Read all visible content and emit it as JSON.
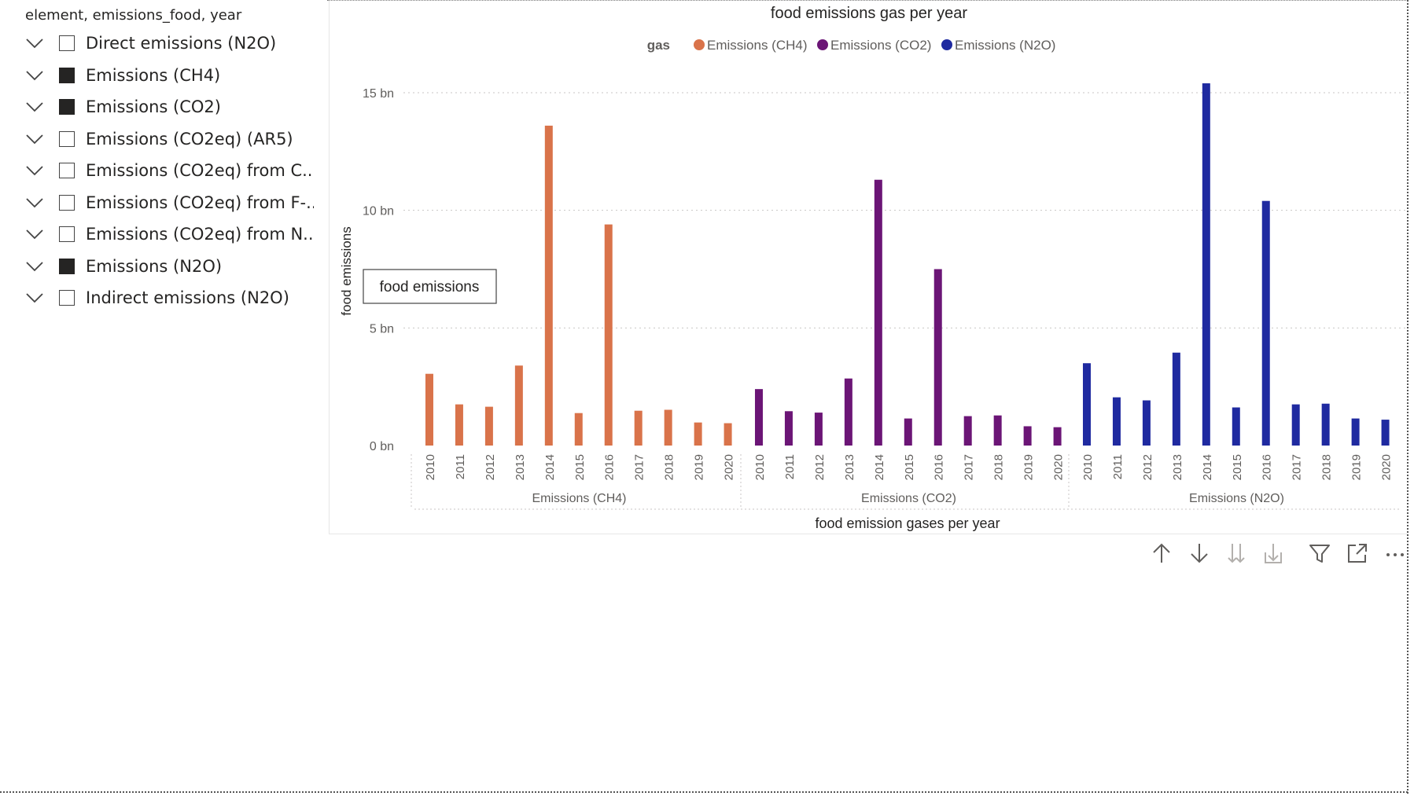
{
  "slicer": {
    "header": "element, emissions_food, year",
    "items": [
      {
        "label": "Direct emissions (N2O)",
        "checked": false
      },
      {
        "label": "Emissions (CH4)",
        "checked": true
      },
      {
        "label": "Emissions (CO2)",
        "checked": true
      },
      {
        "label": "Emissions (CO2eq) (AR5)",
        "checked": false
      },
      {
        "label": "Emissions (CO2eq) from C...",
        "checked": false
      },
      {
        "label": "Emissions (CO2eq) from F-...",
        "checked": false
      },
      {
        "label": "Emissions (CO2eq) from N...",
        "checked": false
      },
      {
        "label": "Emissions (N2O)",
        "checked": true
      },
      {
        "label": "Indirect emissions (N2O)",
        "checked": false
      }
    ]
  },
  "toolbar": {
    "icons": [
      "arrow-up-icon",
      "arrow-down-icon",
      "double-arrow-down-icon",
      "expand-hierarchy-icon",
      "filter-icon",
      "focus-mode-icon",
      "more-options-icon"
    ]
  },
  "chart_data": {
    "type": "bar",
    "title": "food emissions gas per year",
    "xlabel": "food emission gases per year",
    "ylabel": "food emissions",
    "legend_title": "gas",
    "legend_position": "top-center",
    "ylim": [
      0,
      15
    ],
    "y_unit": "bn",
    "y_ticks": [
      "0 bn",
      "5 bn",
      "10 bn",
      "15 bn"
    ],
    "y_tick_values": [
      0,
      5,
      10,
      15
    ],
    "grid": true,
    "tooltip_box_text": "food emissions",
    "categories": [
      "2010",
      "2011",
      "2012",
      "2013",
      "2014",
      "2015",
      "2016",
      "2017",
      "2018",
      "2019",
      "2020"
    ],
    "series": [
      {
        "name": "Emissions (CH4)",
        "color": "#D9734A",
        "values": [
          3.05,
          1.75,
          1.65,
          3.4,
          13.6,
          1.38,
          9.4,
          1.48,
          1.52,
          0.98,
          0.95
        ]
      },
      {
        "name": "Emissions (CO2)",
        "color": "#6B1576",
        "values": [
          2.4,
          1.46,
          1.4,
          2.85,
          11.3,
          1.15,
          7.5,
          1.25,
          1.28,
          0.82,
          0.78
        ]
      },
      {
        "name": "Emissions (N2O)",
        "color": "#1F2AA0",
        "values": [
          3.5,
          2.05,
          1.92,
          3.95,
          15.4,
          1.62,
          10.4,
          1.75,
          1.78,
          1.15,
          1.1
        ]
      }
    ]
  }
}
